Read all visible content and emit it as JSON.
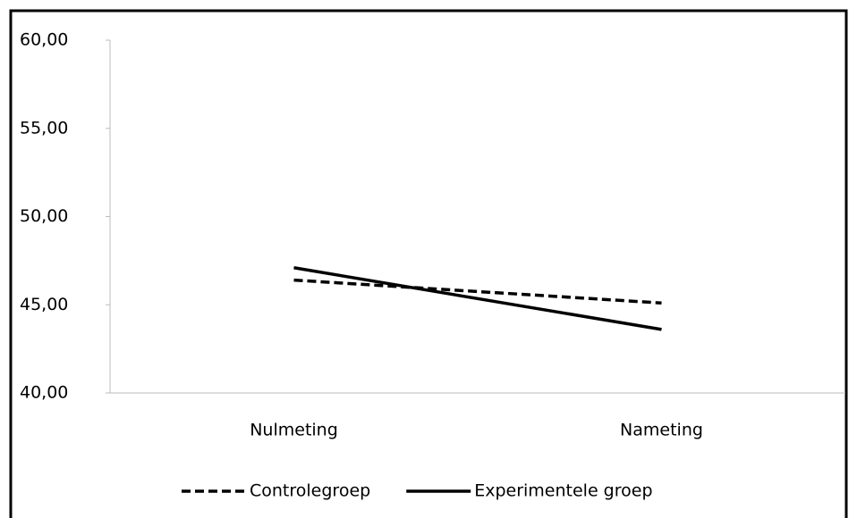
{
  "chart_data": {
    "type": "line",
    "categories": [
      "Nulmeting",
      "Nameting"
    ],
    "series": [
      {
        "name": "Controlegroep",
        "color": "#000000",
        "dash": "dashed",
        "values": [
          46.4,
          45.1
        ]
      },
      {
        "name": "Experimentele groep",
        "color": "#000000",
        "dash": "solid",
        "values": [
          47.1,
          43.6
        ]
      }
    ],
    "ylim": [
      40,
      60
    ],
    "yticks": [
      {
        "value": 40,
        "label": "40,00"
      },
      {
        "value": 45,
        "label": "45,00"
      },
      {
        "value": 50,
        "label": "50,00"
      },
      {
        "value": 55,
        "label": "55,00"
      },
      {
        "value": 60,
        "label": "60,00"
      }
    ],
    "grid": false,
    "legend": "bottom"
  }
}
